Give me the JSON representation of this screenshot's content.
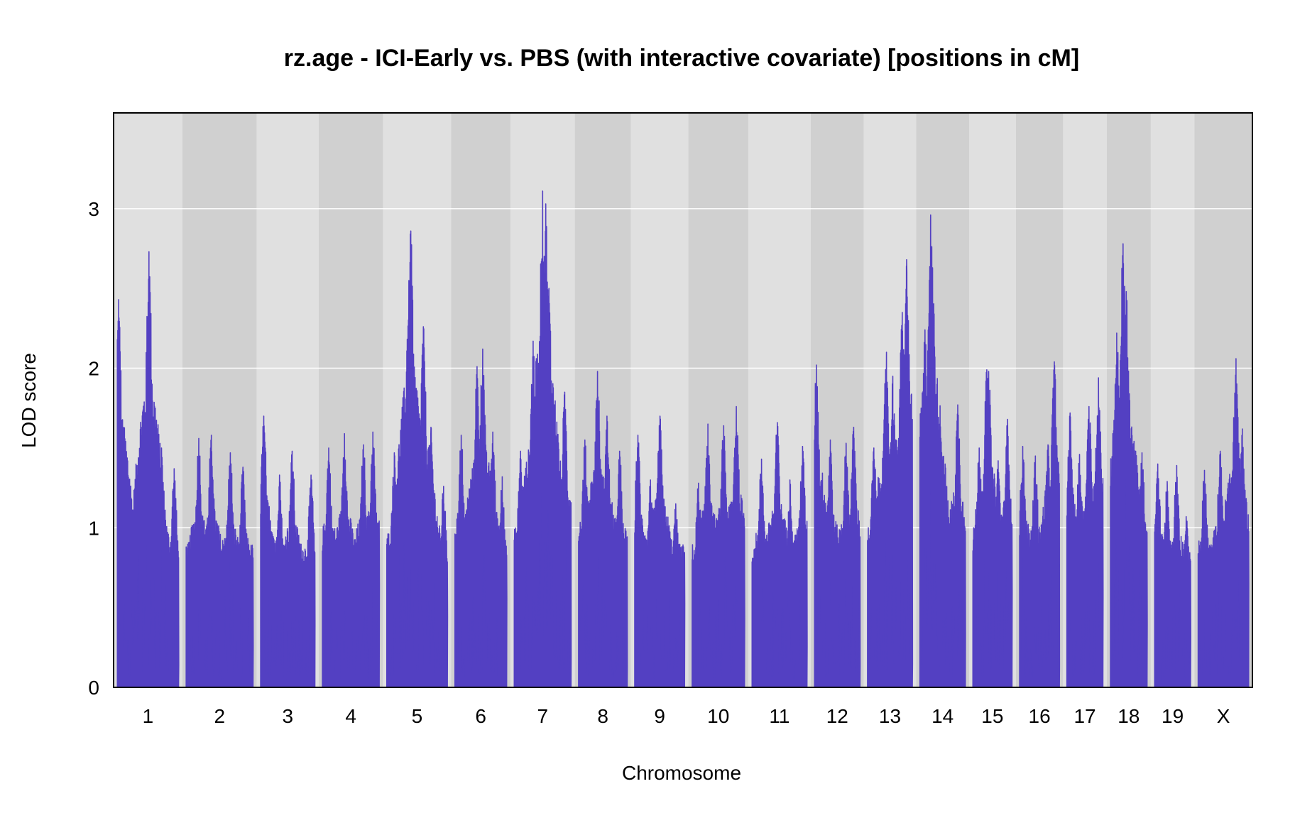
{
  "chart_data": {
    "type": "line",
    "title": "rz.age - ICI-Early vs. PBS (with interactive covariate) [positions in cM]",
    "xlabel": "Chromosome",
    "ylabel": "LOD score",
    "ylim": [
      0,
      3.6
    ],
    "yticks": [
      0,
      1,
      2,
      3
    ],
    "grid": true,
    "series_color": "#5340c2",
    "band_colors": [
      "#e0e0e0",
      "#d0d0d0"
    ],
    "gridline_color": "#ffffff",
    "chromosomes": [
      {
        "name": "1",
        "length_cM": 97,
        "peaks": [
          [
            2,
            2.43
          ],
          [
            8,
            1.55
          ],
          [
            50,
            2.73
          ],
          [
            52,
            2.24
          ],
          [
            55,
            1.9
          ],
          [
            70,
            1.5
          ],
          [
            90,
            1.37
          ]
        ]
      },
      {
        "name": "2",
        "length_cM": 106,
        "peaks": [
          [
            20,
            1.56
          ],
          [
            40,
            1.58
          ],
          [
            70,
            1.47
          ],
          [
            90,
            1.38
          ]
        ]
      },
      {
        "name": "3",
        "length_cM": 86,
        "peaks": [
          [
            5,
            1.7
          ],
          [
            30,
            1.33
          ],
          [
            50,
            1.48
          ],
          [
            80,
            1.33
          ]
        ]
      },
      {
        "name": "4",
        "length_cM": 90,
        "peaks": [
          [
            10,
            1.5
          ],
          [
            35,
            1.59
          ],
          [
            65,
            1.52
          ],
          [
            80,
            1.6
          ]
        ]
      },
      {
        "name": "5",
        "length_cM": 96,
        "peaks": [
          [
            12,
            1.47
          ],
          [
            35,
            2.55
          ],
          [
            38,
            2.86
          ],
          [
            58,
            2.26
          ],
          [
            70,
            1.63
          ],
          [
            90,
            1.26
          ]
        ]
      },
      {
        "name": "6",
        "length_cM": 82,
        "peaks": [
          [
            10,
            1.58
          ],
          [
            35,
            2.01
          ],
          [
            44,
            2.12
          ],
          [
            60,
            1.6
          ],
          [
            75,
            1.32
          ]
        ]
      },
      {
        "name": "7",
        "length_cM": 90,
        "peaks": [
          [
            10,
            1.48
          ],
          [
            30,
            2.17
          ],
          [
            45,
            3.11
          ],
          [
            50,
            3.03
          ],
          [
            55,
            2.5
          ],
          [
            80,
            1.85
          ]
        ]
      },
      {
        "name": "8",
        "length_cM": 77,
        "peaks": [
          [
            10,
            1.55
          ],
          [
            30,
            1.98
          ],
          [
            45,
            1.7
          ],
          [
            65,
            1.48
          ]
        ]
      },
      {
        "name": "9",
        "length_cM": 79,
        "peaks": [
          [
            5,
            1.58
          ],
          [
            25,
            1.3
          ],
          [
            40,
            1.7
          ],
          [
            65,
            1.15
          ]
        ]
      },
      {
        "name": "10",
        "length_cM": 83,
        "peaks": [
          [
            10,
            1.28
          ],
          [
            25,
            1.65
          ],
          [
            50,
            1.64
          ],
          [
            70,
            1.76
          ]
        ]
      },
      {
        "name": "11",
        "length_cM": 87,
        "peaks": [
          [
            15,
            1.43
          ],
          [
            40,
            1.66
          ],
          [
            60,
            1.3
          ],
          [
            80,
            1.51
          ]
        ]
      },
      {
        "name": "12",
        "length_cM": 72,
        "peaks": [
          [
            3,
            2.02
          ],
          [
            25,
            1.55
          ],
          [
            50,
            1.53
          ],
          [
            62,
            1.63
          ]
        ]
      },
      {
        "name": "13",
        "length_cM": 71,
        "peaks": [
          [
            10,
            1.5
          ],
          [
            30,
            2.1
          ],
          [
            40,
            1.95
          ],
          [
            55,
            2.35
          ],
          [
            62,
            2.68
          ]
        ]
      },
      {
        "name": "14",
        "length_cM": 72,
        "peaks": [
          [
            8,
            2.24
          ],
          [
            17,
            2.96
          ],
          [
            20,
            2.63
          ],
          [
            40,
            1.4
          ],
          [
            60,
            1.77
          ]
        ]
      },
      {
        "name": "15",
        "length_cM": 62,
        "peaks": [
          [
            10,
            1.5
          ],
          [
            22,
            1.99
          ],
          [
            25,
            1.98
          ],
          [
            40,
            1.42
          ],
          [
            55,
            1.68
          ]
        ]
      },
      {
        "name": "16",
        "length_cM": 63,
        "peaks": [
          [
            5,
            1.51
          ],
          [
            25,
            1.45
          ],
          [
            45,
            1.52
          ],
          [
            55,
            2.04
          ]
        ]
      },
      {
        "name": "17",
        "length_cM": 57,
        "peaks": [
          [
            5,
            1.72
          ],
          [
            20,
            1.46
          ],
          [
            35,
            1.76
          ],
          [
            50,
            1.94
          ]
        ]
      },
      {
        "name": "18",
        "length_cM": 58,
        "peaks": [
          [
            10,
            2.22
          ],
          [
            20,
            2.78
          ],
          [
            25,
            2.48
          ],
          [
            40,
            1.48
          ],
          [
            50,
            1.47
          ]
        ]
      },
      {
        "name": "19",
        "length_cM": 57,
        "peaks": [
          [
            5,
            1.4
          ],
          [
            20,
            1.29
          ],
          [
            35,
            1.39
          ],
          [
            50,
            1.07
          ]
        ]
      },
      {
        "name": "X",
        "length_cM": 80,
        "peaks": [
          [
            10,
            1.36
          ],
          [
            35,
            1.48
          ],
          [
            60,
            2.06
          ],
          [
            70,
            1.62
          ]
        ]
      }
    ]
  }
}
